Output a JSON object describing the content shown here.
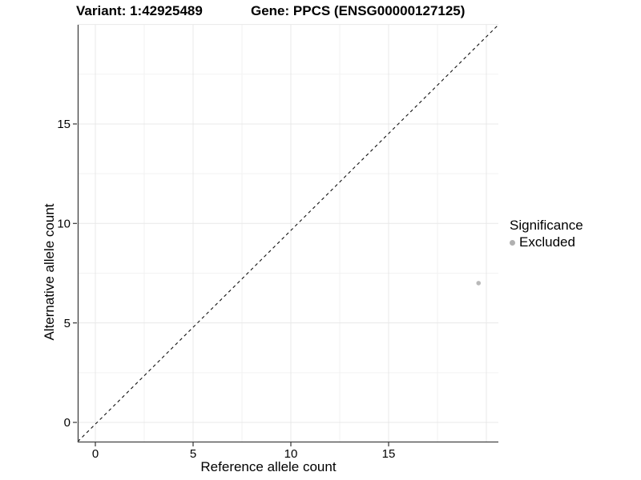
{
  "chart_data": {
    "type": "scatter",
    "title_left": "Variant: 1:42925489",
    "title_right": "Gene: PPCS (ENSG00000127125)",
    "xlabel": "Reference allele count",
    "ylabel": "Alternative allele count",
    "xlim": [
      -1,
      20.6
    ],
    "ylim": [
      -1,
      20.1
    ],
    "x_ticks": [
      0,
      5,
      10,
      15
    ],
    "y_ticks": [
      0,
      5,
      10,
      15
    ],
    "grid": {
      "visible": true,
      "major_breaks": [
        0,
        5,
        10,
        15,
        20
      ],
      "minor_breaks": [
        2.5,
        7.5,
        12.5,
        17.5
      ]
    },
    "points": [
      {
        "x": 19.6,
        "y": 7,
        "significance": "Excluded"
      }
    ],
    "identity_line": {
      "equation": "y = x",
      "style": "dashed"
    },
    "legend": {
      "title": "Significance",
      "position": "right",
      "items": [
        {
          "label": "Excluded",
          "marker": "circle"
        }
      ]
    },
    "colors": {
      "point": "#b9b9b9",
      "legend_marker": "#b0b0b0",
      "grid_major": "#e8e8e8",
      "grid_minor": "#f2f2f2",
      "axis_line": "#404040",
      "tick": "#333333",
      "identity_line": "#111111",
      "text": "#000000"
    }
  }
}
